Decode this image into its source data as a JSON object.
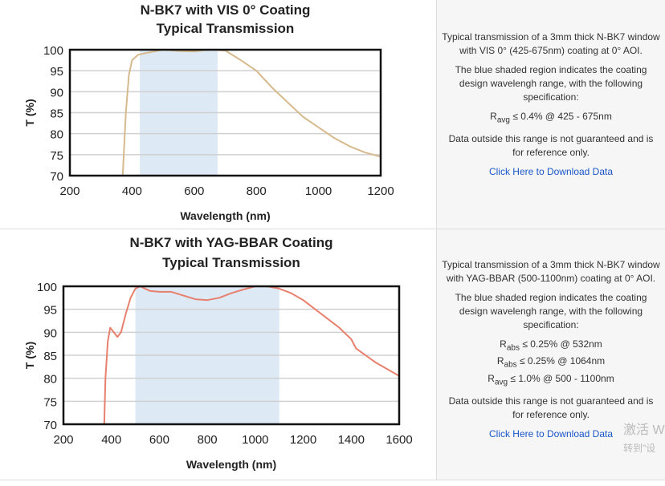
{
  "chart_data": [
    {
      "type": "line",
      "title": [
        "N-BK7 with VIS 0° Coating",
        "Typical Transmission"
      ],
      "xlabel": "Wavelength (nm)",
      "ylabel": "T (%)",
      "xlim": [
        200,
        1200
      ],
      "ylim": [
        70,
        100
      ],
      "xticks": [
        200,
        400,
        600,
        800,
        1000,
        1200
      ],
      "yticks": [
        70,
        75,
        80,
        85,
        90,
        95,
        100
      ],
      "grid": "horizontal",
      "shaded_range": [
        425,
        675
      ],
      "shade_color": "#dde9f5",
      "line_color": "#d6b98d",
      "x": [
        370,
        380,
        390,
        400,
        420,
        450,
        500,
        550,
        600,
        650,
        700,
        750,
        800,
        850,
        900,
        950,
        1000,
        1050,
        1100,
        1150,
        1200
      ],
      "y": [
        70,
        85,
        94,
        97.5,
        98.8,
        99.3,
        100,
        99.7,
        99.6,
        100,
        99.8,
        97.5,
        95,
        91,
        87.5,
        84,
        81.5,
        79,
        77,
        75.5,
        74.5
      ]
    },
    {
      "type": "line",
      "title": [
        "N-BK7 with YAG-BBAR Coating",
        "Typical Transmission"
      ],
      "xlabel": "Wavelength (nm)",
      "ylabel": "T (%)",
      "xlim": [
        200,
        1600
      ],
      "ylim": [
        70,
        100
      ],
      "xticks": [
        200,
        400,
        600,
        800,
        1000,
        1200,
        1400,
        1600
      ],
      "yticks": [
        70,
        75,
        80,
        85,
        90,
        95,
        100
      ],
      "grid": "horizontal",
      "shaded_range": [
        500,
        1100
      ],
      "shade_color": "#dde9f5",
      "line_color": "#e8806e",
      "x": [
        370,
        375,
        385,
        395,
        410,
        425,
        440,
        460,
        480,
        500,
        520,
        560,
        600,
        650,
        700,
        750,
        800,
        850,
        900,
        950,
        1000,
        1050,
        1100,
        1150,
        1200,
        1250,
        1300,
        1350,
        1400,
        1420,
        1500,
        1600
      ],
      "y": [
        70,
        80,
        88,
        91,
        90,
        89,
        90,
        94,
        97.5,
        99.5,
        100,
        99,
        98.8,
        98.8,
        98,
        97.2,
        97,
        97.5,
        98.5,
        99.3,
        100,
        100,
        99.5,
        98.5,
        97,
        95,
        93,
        91,
        88.5,
        86.5,
        83.5,
        80.5
      ]
    }
  ],
  "panels": [
    {
      "desc": "Typical transmission of a 3mm thick N-BK7 window with VIS 0° (425-675nm) coating at 0° AOI.",
      "shade_note": "The blue shaded region indicates the coating design wavelengh range, with the following specification:",
      "specs": [
        {
          "r": "R",
          "sub": "avg",
          "val": "≤ 0.4% @ 425 - 675nm"
        }
      ],
      "disclaimer": "Data outside this range is not guaranteed and is for reference only.",
      "download": "Click Here to Download Data"
    },
    {
      "desc": "Typical transmission of a 3mm thick N-BK7 window with YAG-BBAR (500-1100nm) coating at 0° AOI.",
      "shade_note": "The blue shaded region indicates the coating design wavelengh range, with the following specification:",
      "specs": [
        {
          "r": "R",
          "sub": "abs",
          "val": "≤ 0.25% @ 532nm"
        },
        {
          "r": "R",
          "sub": "abs",
          "val": "≤ 0.25% @ 1064nm"
        },
        {
          "r": "R",
          "sub": "avg",
          "val": "≤ 1.0% @ 500 - 1100nm"
        }
      ],
      "disclaimer": "Data outside this range is not guaranteed and is for reference only.",
      "download": "Click Here to Download Data"
    }
  ],
  "watermark": [
    "激活 W",
    "转到\"设"
  ]
}
